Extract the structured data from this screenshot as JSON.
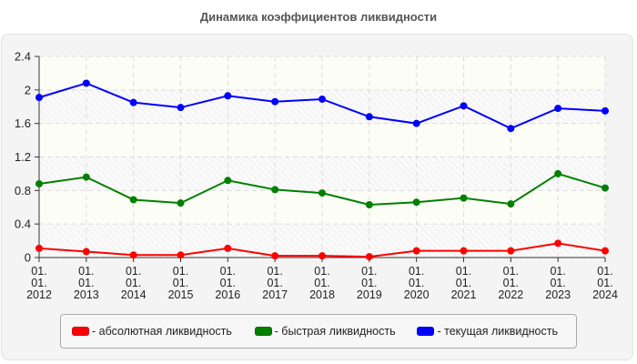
{
  "chart_data": {
    "type": "line",
    "title": "Динамика коэффициентов ликвидности",
    "xlabel": "",
    "ylabel": "",
    "categories": [
      "01.01.2012",
      "01.01.2013",
      "01.01.2014",
      "01.01.2015",
      "01.01.2016",
      "01.01.2017",
      "01.01.2018",
      "01.01.2019",
      "01.01.2020",
      "01.01.2021",
      "01.01.2022",
      "01.01.2023",
      "01.01.2024"
    ],
    "category_lines": [
      [
        "01.",
        "01.",
        "2012"
      ],
      [
        "01.",
        "01.",
        "2013"
      ],
      [
        "01.",
        "01.",
        "2014"
      ],
      [
        "01.",
        "01.",
        "2015"
      ],
      [
        "01.",
        "01.",
        "2016"
      ],
      [
        "01.",
        "01.",
        "2017"
      ],
      [
        "01.",
        "01.",
        "2018"
      ],
      [
        "01.",
        "01.",
        "2019"
      ],
      [
        "01.",
        "01.",
        "2020"
      ],
      [
        "01.",
        "01.",
        "2021"
      ],
      [
        "01.",
        "01.",
        "2022"
      ],
      [
        "01.",
        "01.",
        "2023"
      ],
      [
        "01.",
        "01.",
        "2024"
      ]
    ],
    "series": [
      {
        "name": "абсолютная ликвидность",
        "color": "#ff0000",
        "values": [
          0.11,
          0.07,
          0.03,
          0.03,
          0.11,
          0.02,
          0.02,
          0.01,
          0.08,
          0.08,
          0.08,
          0.17,
          0.08
        ]
      },
      {
        "name": "быстрая ликвидность",
        "color": "#008000",
        "values": [
          0.88,
          0.96,
          0.69,
          0.65,
          0.92,
          0.81,
          0.77,
          0.63,
          0.66,
          0.71,
          0.64,
          1.0,
          0.83
        ]
      },
      {
        "name": "текущая ликвидность",
        "color": "#0000ff",
        "values": [
          1.91,
          2.08,
          1.85,
          1.79,
          1.93,
          1.86,
          1.89,
          1.68,
          1.6,
          1.81,
          1.54,
          1.78,
          1.75
        ]
      }
    ],
    "ylim": [
      0,
      2.4
    ],
    "yticks": [
      "0",
      "0.4",
      "0.8",
      "1.2",
      "1.6",
      "2",
      "2.4"
    ],
    "ytick_values": [
      0,
      0.4,
      0.8,
      1.2,
      1.6,
      2.0,
      2.4
    ],
    "grid": true,
    "legend_position": "bottom"
  },
  "legend": {
    "items": [
      {
        "label": "- абсолютная ликвидность",
        "color": "#ff0000"
      },
      {
        "label": "- быстрая ликвидность",
        "color": "#008000"
      },
      {
        "label": "- текущая ликвидность",
        "color": "#0000ff"
      }
    ]
  }
}
